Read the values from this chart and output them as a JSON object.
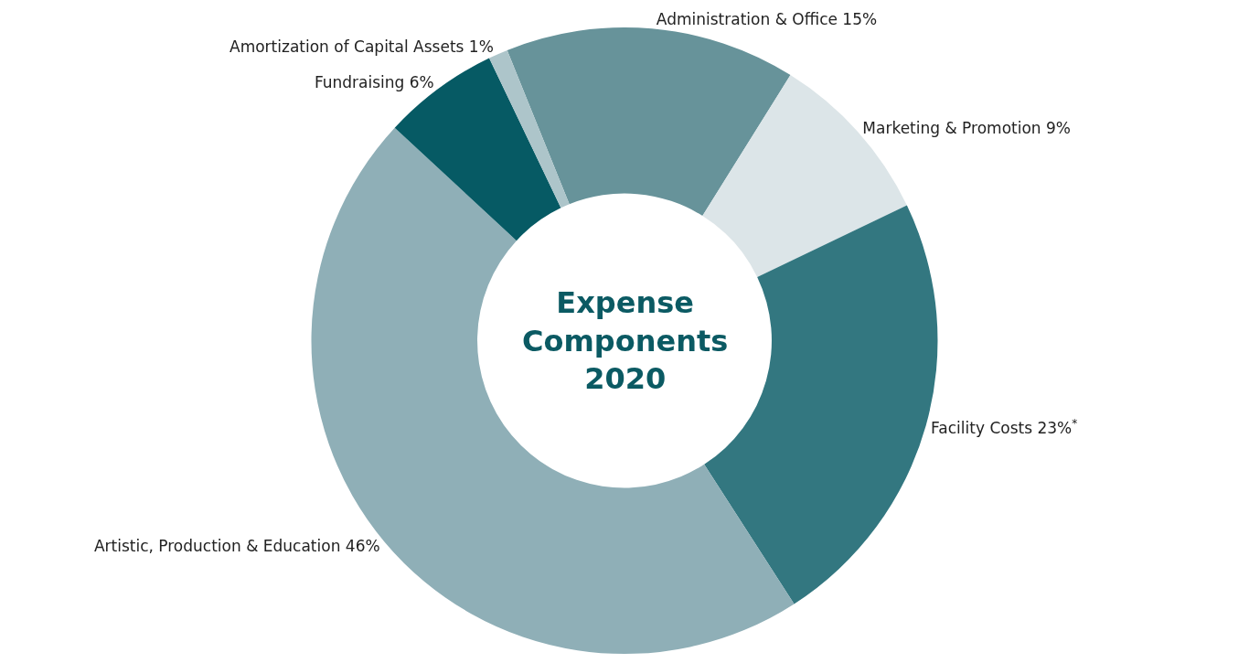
{
  "chart_data": {
    "type": "donut",
    "title": "Expense Components 2020",
    "categories": [
      "Administration & Office 15%",
      "Marketing & Promotion 9%",
      "Facility Costs 23%$^{*}$",
      "Artistic, Production & Education 46%",
      "Fundraising 6%",
      "Amortization of Capital Assets 1%"
    ],
    "values": [
      15,
      9,
      23,
      46,
      6,
      1
    ],
    "colors": [
      "#67939a",
      "#dce5e8",
      "#337780",
      "#8fafb7",
      "#065a64",
      "#adc5ca"
    ],
    "legend": false
  }
}
